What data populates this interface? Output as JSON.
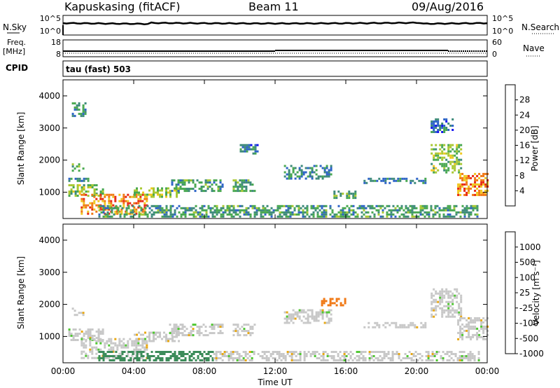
{
  "header": {
    "station": "Kapuskasing (fitACF)",
    "beam": "Beam 11",
    "date": "09/Aug/2016"
  },
  "noise_panel": {
    "left_label": "N.Sky",
    "right_label": "N.Search",
    "left_ticks": [
      "10^5",
      "10^0"
    ],
    "right_ticks": [
      "10^5",
      "10^0"
    ]
  },
  "freq_panel": {
    "left_label_1": "Freq.",
    "left_label_2": "[MHz]",
    "right_label": "Nave",
    "left_ticks": [
      "18",
      "8"
    ],
    "right_ticks": [
      "60",
      "0"
    ]
  },
  "cpid": {
    "label": "CPID",
    "value": "tau (fast) 503"
  },
  "chart_data": [
    {
      "type": "heatmap",
      "name": "power",
      "ylabel": "Slant Range [km]",
      "xlabel": "",
      "xlim": [
        0,
        24
      ],
      "ylim": [
        180,
        4500
      ],
      "yticks": [
        1000,
        2000,
        3000,
        4000
      ],
      "xtick_labels": [],
      "colorbar": {
        "label": "Power [dB]",
        "range": [
          0,
          32
        ],
        "ticks": [
          4,
          8,
          12,
          16,
          20,
          24,
          28
        ],
        "colors": [
          "#1414f0",
          "#2e64c8",
          "#3d8a7a",
          "#48a850",
          "#a8c832",
          "#f0c81e",
          "#f07814",
          "#e82814"
        ]
      },
      "echo_regions": [
        {
          "t0": 0.5,
          "t1": 1.1,
          "r0": 1650,
          "r1": 1900,
          "v": 14
        },
        {
          "t0": 0.3,
          "t1": 1.6,
          "r0": 1350,
          "r1": 1450,
          "v": 10
        },
        {
          "t0": 0.3,
          "t1": 2.3,
          "r0": 900,
          "r1": 1250,
          "v": 16
        },
        {
          "t0": 1.0,
          "t1": 4.8,
          "r0": 320,
          "r1": 950,
          "v": 26
        },
        {
          "t0": 4.0,
          "t1": 6.5,
          "r0": 850,
          "r1": 1150,
          "v": 18
        },
        {
          "t0": 6.0,
          "t1": 9.0,
          "r0": 1050,
          "r1": 1400,
          "v": 12
        },
        {
          "t0": 9.6,
          "t1": 10.9,
          "r0": 1050,
          "r1": 1400,
          "v": 12
        },
        {
          "t0": 12.5,
          "t1": 15.2,
          "r0": 1450,
          "r1": 1850,
          "v": 10
        },
        {
          "t0": 15.3,
          "t1": 16.5,
          "r0": 800,
          "r1": 1050,
          "v": 14
        },
        {
          "t0": 17.0,
          "t1": 20.5,
          "r0": 1300,
          "r1": 1450,
          "v": 9
        },
        {
          "t0": 20.8,
          "t1": 22.5,
          "r0": 1600,
          "r1": 2500,
          "v": 16
        },
        {
          "t0": 22.3,
          "t1": 24.0,
          "r0": 900,
          "r1": 1600,
          "v": 26
        },
        {
          "t0": 2.0,
          "t1": 23.5,
          "r0": 250,
          "r1": 600,
          "v": 12
        },
        {
          "t0": 0.5,
          "t1": 1.3,
          "r0": 3400,
          "r1": 3800,
          "v": 9
        },
        {
          "t0": 10.0,
          "t1": 11.0,
          "r0": 2200,
          "r1": 2500,
          "v": 8
        },
        {
          "t0": 20.8,
          "t1": 22.0,
          "r0": 2900,
          "r1": 3300,
          "v": 8
        }
      ]
    },
    {
      "type": "heatmap",
      "name": "velocity",
      "ylabel": "Slant Range [km]",
      "xlabel": "Time UT",
      "xlim": [
        0,
        24
      ],
      "ylim": [
        180,
        4500
      ],
      "yticks": [
        1000,
        2000,
        3000,
        4000
      ],
      "xtick_labels": [
        "00:00",
        "04:00",
        "08:00",
        "12:00",
        "16:00",
        "20:00",
        "00:00"
      ],
      "xtick_values": [
        0,
        4,
        8,
        12,
        16,
        20,
        24
      ],
      "colorbar": {
        "label": "Velocity [m s⁻¹]",
        "ticks": [
          "1000",
          "500",
          "100",
          "25",
          "-25",
          "-100",
          "-500",
          "-1000"
        ],
        "colors": [
          "#2a3cc8",
          "#2e64b4",
          "#3c8c5a",
          "#50c832",
          "#c8c8c8",
          "#e8a814",
          "#f07814",
          "#e82814"
        ]
      },
      "echo_regions": [
        {
          "t0": 0.5,
          "t1": 1.1,
          "r0": 1650,
          "r1": 1900,
          "v": 25
        },
        {
          "t0": 0.3,
          "t1": 2.3,
          "r0": 900,
          "r1": 1250,
          "v": 25
        },
        {
          "t0": 1.0,
          "t1": 4.8,
          "r0": 320,
          "r1": 950,
          "v": 25
        },
        {
          "t0": 4.0,
          "t1": 6.5,
          "r0": 850,
          "r1": 1150,
          "v": 25
        },
        {
          "t0": 6.0,
          "t1": 9.0,
          "r0": 1050,
          "r1": 1400,
          "v": 25
        },
        {
          "t0": 9.6,
          "t1": 10.9,
          "r0": 1050,
          "r1": 1400,
          "v": 25
        },
        {
          "t0": 12.5,
          "t1": 15.2,
          "r0": 1450,
          "r1": 1850,
          "v": 25
        },
        {
          "t0": 14.6,
          "t1": 16.0,
          "r0": 2000,
          "r1": 2200,
          "v": -500
        },
        {
          "t0": 17.0,
          "t1": 20.5,
          "r0": 1300,
          "r1": 1450,
          "v": 25
        },
        {
          "t0": 20.8,
          "t1": 22.5,
          "r0": 1600,
          "r1": 2500,
          "v": 25
        },
        {
          "t0": 22.3,
          "t1": 24.0,
          "r0": 900,
          "r1": 1600,
          "v": 25
        },
        {
          "t0": 2.0,
          "t1": 8.5,
          "r0": 250,
          "r1": 550,
          "v": 100
        },
        {
          "t0": 8.5,
          "t1": 23.5,
          "r0": 250,
          "r1": 550,
          "v": 25
        }
      ]
    }
  ]
}
